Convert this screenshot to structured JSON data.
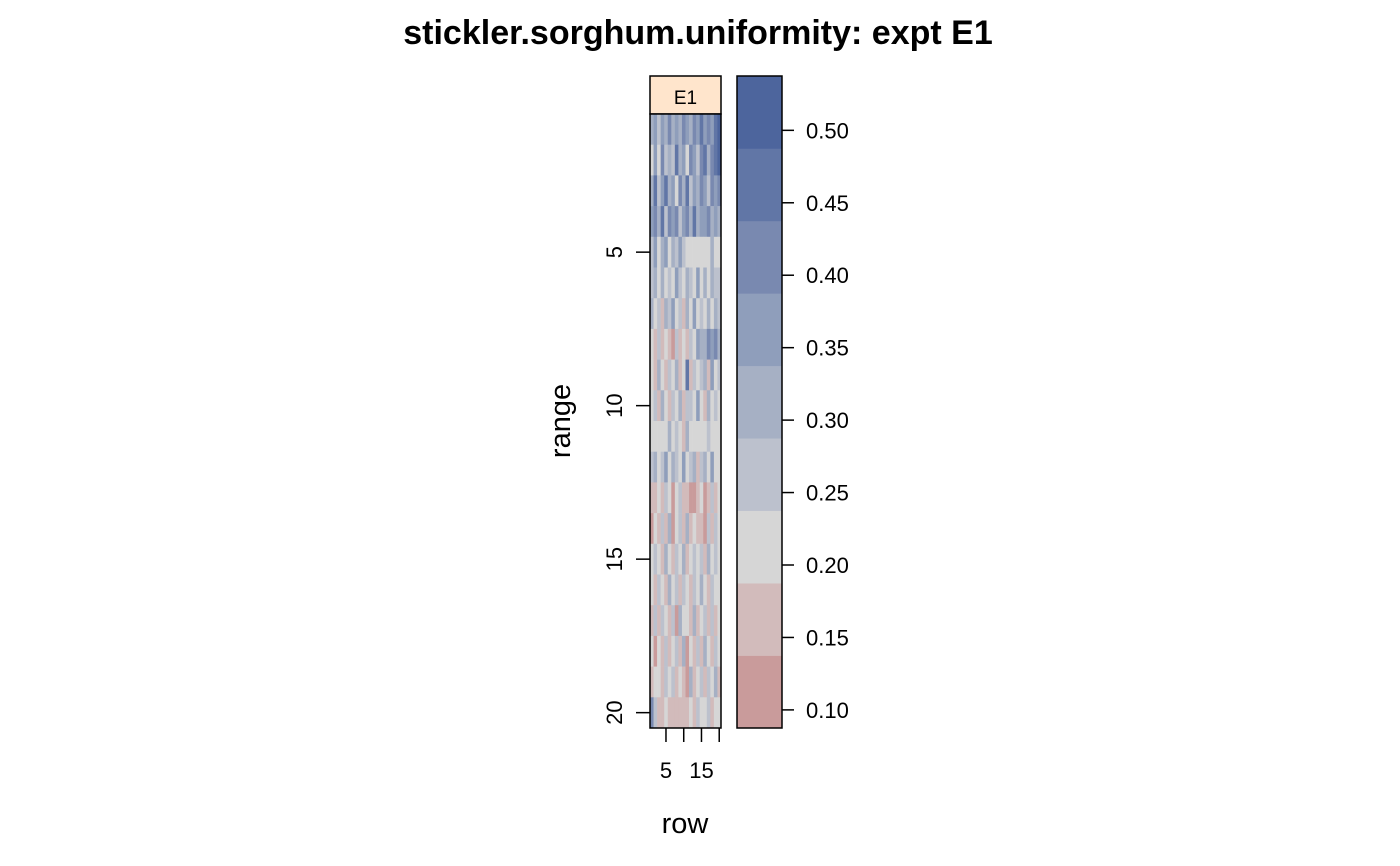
{
  "chart_data": {
    "type": "heatmap",
    "title": "stickler.sorghum.uniformity: expt E1",
    "panel_label": "E1",
    "xlabel": "row",
    "ylabel": "range",
    "x_range": [
      1,
      20
    ],
    "y_range": [
      1,
      20
    ],
    "x_ticks": [
      5,
      10,
      15,
      20
    ],
    "x_tick_labels": [
      "5",
      "",
      "15",
      ""
    ],
    "y_ticks": [
      5,
      10,
      15,
      20
    ],
    "y_tick_labels": [
      "5",
      "10",
      "15",
      "20"
    ],
    "legend_breaks": [
      0.0875,
      0.1375,
      0.1875,
      0.2375,
      0.2875,
      0.3375,
      0.3875,
      0.4375,
      0.4875,
      0.5375
    ],
    "legend_colors": [
      "#c99b9b",
      "#d2bbbb",
      "#d6d6d6",
      "#bcc1cd",
      "#a6b0c4",
      "#8f9ebb",
      "#7989b0",
      "#6176a6",
      "#4d659d",
      "#355594"
    ],
    "legend_ticks": [
      0.1,
      0.15,
      0.2,
      0.25,
      0.3,
      0.35,
      0.4,
      0.45,
      0.5
    ],
    "legend_tick_labels": [
      "0.10",
      "0.15",
      "0.20",
      "0.25",
      "0.30",
      "0.35",
      "0.40",
      "0.45",
      "0.50"
    ],
    "strip_color": "#ffe5cc",
    "values": [
      [
        0.32,
        0.38,
        0.28,
        0.35,
        0.3,
        0.4,
        0.33,
        0.36,
        0.29,
        0.42,
        0.37,
        0.31,
        0.39,
        0.34,
        0.44,
        0.36,
        0.41,
        0.38,
        0.45,
        0.49
      ],
      [
        0.22,
        0.35,
        0.2,
        0.41,
        0.27,
        0.33,
        0.24,
        0.45,
        0.3,
        0.38,
        0.21,
        0.43,
        0.36,
        0.28,
        0.4,
        0.47,
        0.33,
        0.39,
        0.44,
        0.51
      ],
      [
        0.3,
        0.44,
        0.26,
        0.37,
        0.48,
        0.29,
        0.35,
        0.22,
        0.4,
        0.33,
        0.46,
        0.28,
        0.38,
        0.31,
        0.42,
        0.36,
        0.27,
        0.41,
        0.34,
        0.39
      ],
      [
        0.36,
        0.41,
        0.31,
        0.47,
        0.28,
        0.39,
        0.34,
        0.43,
        0.26,
        0.37,
        0.4,
        0.32,
        0.45,
        0.29,
        0.38,
        0.35,
        0.42,
        0.3,
        0.37,
        0.33
      ],
      [
        0.27,
        0.34,
        0.23,
        0.3,
        0.36,
        0.21,
        0.32,
        0.25,
        0.38,
        0.28,
        0.22,
        0.2,
        0.2,
        0.2,
        0.2,
        0.2,
        0.2,
        0.31,
        0.2,
        0.2
      ],
      [
        0.24,
        0.3,
        0.2,
        0.33,
        0.22,
        0.28,
        0.19,
        0.35,
        0.24,
        0.21,
        0.31,
        0.26,
        0.2,
        0.34,
        0.23,
        0.29,
        0.21,
        0.32,
        0.25,
        0.27
      ],
      [
        0.33,
        0.2,
        0.28,
        0.18,
        0.31,
        0.24,
        0.37,
        0.21,
        0.26,
        0.17,
        0.3,
        0.22,
        0.35,
        0.19,
        0.27,
        0.23,
        0.33,
        0.2,
        0.29,
        0.25
      ],
      [
        0.2,
        0.16,
        0.26,
        0.14,
        0.22,
        0.18,
        0.12,
        0.24,
        0.15,
        0.2,
        0.17,
        0.28,
        0.19,
        0.36,
        0.33,
        0.3,
        0.4,
        0.35,
        0.42,
        0.31
      ],
      [
        0.23,
        0.17,
        0.29,
        0.21,
        0.15,
        0.25,
        0.19,
        0.32,
        0.16,
        0.22,
        0.44,
        0.18,
        0.27,
        0.2,
        0.24,
        0.3,
        0.18,
        0.35,
        0.22,
        0.28
      ],
      [
        0.19,
        0.25,
        0.16,
        0.3,
        0.21,
        0.14,
        0.26,
        0.2,
        0.33,
        0.17,
        0.24,
        0.28,
        0.19,
        0.38,
        0.22,
        0.16,
        0.31,
        0.23,
        0.27,
        0.2
      ],
      [
        0.22,
        0.2,
        0.2,
        0.2,
        0.2,
        0.31,
        0.2,
        0.26,
        0.2,
        0.15,
        0.29,
        0.2,
        0.2,
        0.2,
        0.2,
        0.2,
        0.24,
        0.2,
        0.2,
        0.2
      ],
      [
        0.26,
        0.33,
        0.2,
        0.28,
        0.37,
        0.21,
        0.3,
        0.24,
        0.19,
        0.34,
        0.22,
        0.27,
        0.31,
        0.18,
        0.25,
        0.29,
        0.21,
        0.36,
        0.23,
        0.2
      ],
      [
        0.18,
        0.14,
        0.21,
        0.16,
        0.25,
        0.19,
        0.13,
        0.22,
        0.28,
        0.15,
        0.18,
        0.12,
        0.13,
        0.14,
        0.2,
        0.12,
        0.17,
        0.24,
        0.15,
        0.2
      ],
      [
        0.12,
        0.2,
        0.15,
        0.24,
        0.17,
        0.29,
        0.13,
        0.21,
        0.26,
        0.16,
        0.33,
        0.14,
        0.22,
        0.18,
        0.15,
        0.11,
        0.25,
        0.16,
        0.28,
        0.19
      ],
      [
        0.2,
        0.27,
        0.22,
        0.17,
        0.3,
        0.21,
        0.14,
        0.25,
        0.19,
        0.32,
        0.16,
        0.23,
        0.28,
        0.2,
        0.26,
        0.18,
        0.29,
        0.21,
        0.24,
        0.2
      ],
      [
        0.23,
        0.18,
        0.26,
        0.21,
        0.15,
        0.3,
        0.2,
        0.24,
        0.17,
        0.28,
        0.22,
        0.14,
        0.27,
        0.19,
        0.31,
        0.23,
        0.16,
        0.25,
        0.2,
        0.22
      ],
      [
        0.18,
        0.24,
        0.15,
        0.28,
        0.2,
        0.16,
        0.26,
        0.13,
        0.31,
        0.19,
        0.23,
        0.17,
        0.29,
        0.15,
        0.21,
        0.27,
        0.18,
        0.24,
        0.14,
        0.2
      ],
      [
        0.21,
        0.12,
        0.23,
        0.17,
        0.27,
        0.14,
        0.2,
        0.25,
        0.16,
        0.29,
        0.13,
        0.22,
        0.18,
        0.26,
        0.15,
        0.3,
        0.19,
        0.17,
        0.24,
        0.21
      ],
      [
        0.17,
        0.23,
        0.19,
        0.14,
        0.25,
        0.2,
        0.28,
        0.15,
        0.22,
        0.18,
        0.13,
        0.32,
        0.16,
        0.21,
        0.27,
        0.14,
        0.24,
        0.19,
        0.31,
        0.18
      ],
      [
        0.43,
        0.28,
        0.16,
        0.18,
        0.23,
        0.17,
        0.15,
        0.16,
        0.16,
        0.14,
        0.16,
        0.22,
        0.18,
        0.24,
        0.2,
        0.19,
        0.26,
        0.18,
        0.21,
        0.2
      ]
    ]
  }
}
